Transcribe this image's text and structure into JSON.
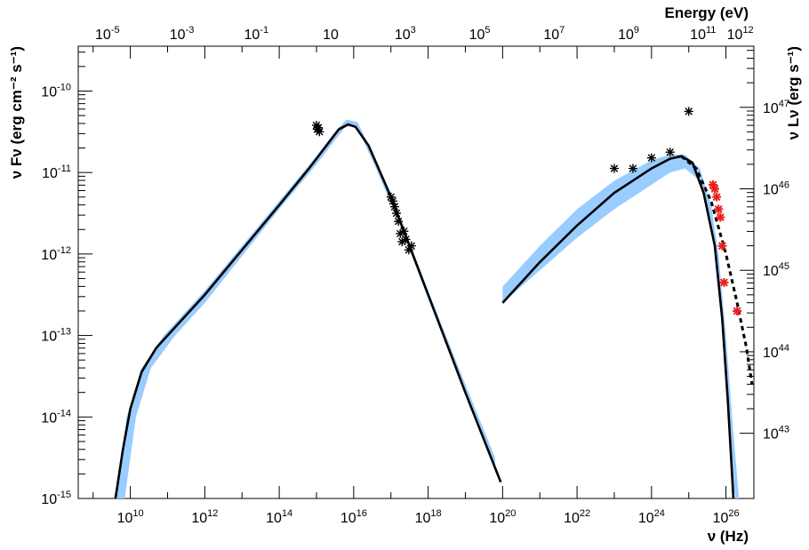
{
  "chart_data": {
    "type": "scatter",
    "title": "",
    "xlabel": "ν (Hz)",
    "ylabel": "ν Fν (erg cm⁻² s⁻¹)",
    "x2label": "Energy (eV)",
    "y2label": "ν Lν (erg s⁻¹)",
    "xscale": "log",
    "yscale": "log",
    "xlim_log10": [
      8.6,
      26.75
    ],
    "ylim_log10": [
      -15,
      -9.45
    ],
    "y2lim_log10": [
      42.2,
      47.75
    ],
    "grid": false,
    "x_ticks": [
      {
        "base": "10",
        "exp": "10",
        "log": 10
      },
      {
        "base": "10",
        "exp": "12",
        "log": 12
      },
      {
        "base": "10",
        "exp": "14",
        "log": 14
      },
      {
        "base": "10",
        "exp": "16",
        "log": 16
      },
      {
        "base": "10",
        "exp": "18",
        "log": 18
      },
      {
        "base": "10",
        "exp": "20",
        "log": 20
      },
      {
        "base": "10",
        "exp": "22",
        "log": 22
      },
      {
        "base": "10",
        "exp": "24",
        "log": 24
      },
      {
        "base": "10",
        "exp": "26",
        "log": 26
      }
    ],
    "y_ticks": [
      {
        "base": "10",
        "exp": "-15",
        "log": -15
      },
      {
        "base": "10",
        "exp": "-14",
        "log": -14
      },
      {
        "base": "10",
        "exp": "-13",
        "log": -13
      },
      {
        "base": "10",
        "exp": "-12",
        "log": -12
      },
      {
        "base": "10",
        "exp": "-11",
        "log": -11
      },
      {
        "base": "10",
        "exp": "-10",
        "log": -10
      }
    ],
    "x2_ticks": [
      {
        "base": "10",
        "exp": "-5",
        "log": -5
      },
      {
        "base": "10",
        "exp": "-3",
        "log": -3
      },
      {
        "base": "10",
        "exp": "-1",
        "log": -1
      },
      {
        "base": "10",
        "exp": "",
        "log": 1
      },
      {
        "base": "10",
        "exp": "3",
        "log": 3
      },
      {
        "base": "10",
        "exp": "5",
        "log": 5
      },
      {
        "base": "10",
        "exp": "7",
        "log": 7
      },
      {
        "base": "10",
        "exp": "9",
        "log": 9
      },
      {
        "base": "10",
        "exp": "11",
        "log": 11
      },
      {
        "base": "10",
        "exp": "12",
        "log": 12
      }
    ],
    "y2_ticks": [
      {
        "base": "10",
        "exp": "43",
        "log": 43
      },
      {
        "base": "10",
        "exp": "44",
        "log": 44
      },
      {
        "base": "10",
        "exp": "45",
        "log": 45
      },
      {
        "base": "10",
        "exp": "46",
        "log": 46
      },
      {
        "base": "10",
        "exp": "47",
        "log": 47
      }
    ],
    "series": [
      {
        "kind": "band",
        "color": "#99ccff",
        "upper": [
          [
            9.6,
            -15
          ],
          [
            9.9,
            -14
          ],
          [
            10.3,
            -13.4
          ],
          [
            10.9,
            -13
          ],
          [
            12,
            -12.45
          ],
          [
            14,
            -11.35
          ],
          [
            15,
            -10.8
          ],
          [
            15.5,
            -10.5
          ],
          [
            15.8,
            -10.35
          ],
          [
            16.1,
            -10.38
          ],
          [
            16.6,
            -10.85
          ],
          [
            17.2,
            -11.5
          ],
          [
            18,
            -12.45
          ],
          [
            19,
            -13.6
          ],
          [
            19.8,
            -14.5
          ],
          [
            19.8,
            -14.55
          ]
        ],
        "lower": [
          [
            9.85,
            -15
          ],
          [
            10.15,
            -14
          ],
          [
            10.55,
            -13.4
          ],
          [
            11.2,
            -13
          ],
          [
            12,
            -12.6
          ],
          [
            14,
            -11.45
          ],
          [
            15,
            -10.9
          ],
          [
            15.5,
            -10.6
          ],
          [
            15.8,
            -10.43
          ],
          [
            16.1,
            -10.45
          ],
          [
            16.6,
            -10.95
          ],
          [
            17.2,
            -11.6
          ],
          [
            18,
            -12.55
          ],
          [
            19,
            -13.7
          ],
          [
            19.8,
            -14.6
          ]
        ]
      },
      {
        "kind": "band",
        "color": "#99ccff",
        "upper": [
          [
            20,
            -12.4
          ],
          [
            21,
            -11.9
          ],
          [
            22,
            -11.45
          ],
          [
            23,
            -11.1
          ],
          [
            24,
            -10.85
          ],
          [
            24.5,
            -10.78
          ],
          [
            24.9,
            -10.78
          ],
          [
            25.3,
            -10.95
          ],
          [
            25.6,
            -11.4
          ],
          [
            25.8,
            -12
          ],
          [
            26,
            -13
          ],
          [
            26.2,
            -14.2
          ],
          [
            26.35,
            -15
          ]
        ],
        "lower": [
          [
            20,
            -12.6
          ],
          [
            21,
            -12.2
          ],
          [
            22,
            -11.8
          ],
          [
            23,
            -11.45
          ],
          [
            24,
            -11.15
          ],
          [
            24.5,
            -11.0
          ],
          [
            24.9,
            -10.95
          ],
          [
            25.3,
            -11.1
          ],
          [
            25.6,
            -11.6
          ],
          [
            25.8,
            -12.3
          ],
          [
            26,
            -13.4
          ],
          [
            26.15,
            -14.6
          ],
          [
            26.25,
            -15
          ]
        ]
      },
      {
        "kind": "line",
        "color": "#000000",
        "dashed": false,
        "points": [
          [
            9.6,
            -15
          ],
          [
            9.8,
            -14.4
          ],
          [
            10,
            -13.9
          ],
          [
            10.3,
            -13.45
          ],
          [
            10.7,
            -13.15
          ],
          [
            11.2,
            -12.9
          ],
          [
            12,
            -12.5
          ],
          [
            13,
            -11.95
          ],
          [
            14,
            -11.4
          ],
          [
            14.8,
            -10.95
          ],
          [
            15.3,
            -10.65
          ],
          [
            15.6,
            -10.47
          ],
          [
            15.85,
            -10.41
          ],
          [
            16.05,
            -10.44
          ],
          [
            16.4,
            -10.67
          ],
          [
            17,
            -11.3
          ],
          [
            18,
            -12.5
          ],
          [
            19,
            -13.7
          ],
          [
            19.95,
            -14.8
          ]
        ]
      },
      {
        "kind": "line",
        "color": "#000000",
        "dashed": false,
        "points": [
          [
            20,
            -12.6
          ],
          [
            21,
            -12.1
          ],
          [
            22,
            -11.65
          ],
          [
            23,
            -11.25
          ],
          [
            24,
            -10.95
          ],
          [
            24.5,
            -10.83
          ],
          [
            24.8,
            -10.8
          ],
          [
            25.1,
            -10.88
          ],
          [
            25.4,
            -11.25
          ],
          [
            25.7,
            -11.9
          ],
          [
            25.9,
            -12.8
          ],
          [
            26.05,
            -13.8
          ],
          [
            26.2,
            -15
          ]
        ]
      },
      {
        "kind": "line",
        "color": "#000000",
        "dashed": true,
        "points": [
          [
            24.8,
            -10.8
          ],
          [
            25.2,
            -10.95
          ],
          [
            25.6,
            -11.35
          ],
          [
            26,
            -12
          ],
          [
            26.3,
            -12.6
          ],
          [
            26.55,
            -13.15
          ],
          [
            26.7,
            -13.6
          ]
        ]
      },
      {
        "kind": "points",
        "color": "#000000",
        "points": [
          [
            15.0,
            -10.42
          ],
          [
            15.02,
            -10.47
          ],
          [
            15.05,
            -10.45
          ],
          [
            15.08,
            -10.5
          ],
          [
            17.0,
            -11.3
          ],
          [
            17.05,
            -11.35
          ],
          [
            17.1,
            -11.42
          ],
          [
            17.15,
            -11.5
          ],
          [
            17.2,
            -11.6
          ],
          [
            17.25,
            -11.75
          ],
          [
            17.3,
            -11.85
          ],
          [
            17.35,
            -11.72
          ],
          [
            17.4,
            -11.82
          ],
          [
            17.48,
            -11.95
          ],
          [
            17.55,
            -11.9
          ],
          [
            23.0,
            -10.95
          ],
          [
            23.5,
            -10.95
          ],
          [
            24.0,
            -10.82
          ],
          [
            24.5,
            -10.75
          ],
          [
            25.0,
            -10.25
          ]
        ]
      },
      {
        "kind": "points",
        "color": "#e8201c",
        "points": [
          [
            25.65,
            -11.15
          ],
          [
            25.7,
            -11.2
          ],
          [
            25.75,
            -11.3
          ],
          [
            25.8,
            -11.45
          ],
          [
            25.85,
            -11.55
          ],
          [
            25.9,
            -11.9
          ],
          [
            25.95,
            -12.35
          ],
          [
            26.3,
            -12.7
          ]
        ]
      }
    ]
  }
}
